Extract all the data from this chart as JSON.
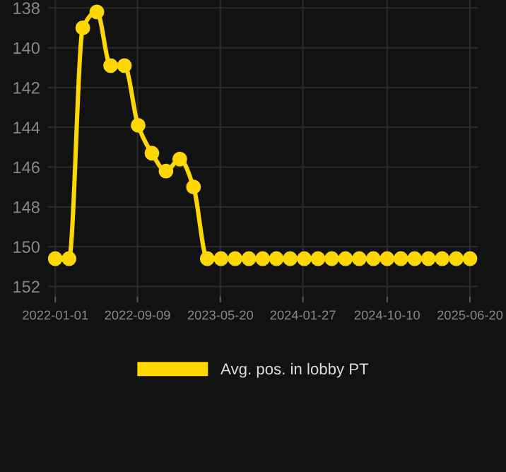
{
  "chart_data": {
    "type": "line",
    "x": [
      "2022-01-01",
      "2022-02-12",
      "2022-03-26",
      "2022-05-08",
      "2022-06-19",
      "2022-07-31",
      "2022-09-11",
      "2022-10-23",
      "2022-12-05",
      "2023-01-16",
      "2023-02-27",
      "2023-04-10",
      "2023-05-22",
      "2023-07-04",
      "2023-08-15",
      "2023-09-26",
      "2023-11-07",
      "2023-12-19",
      "2024-01-31",
      "2024-03-13",
      "2024-04-24",
      "2024-06-05",
      "2024-07-17",
      "2024-08-29",
      "2024-10-10",
      "2024-11-21",
      "2025-01-02",
      "2025-02-13",
      "2025-03-27",
      "2025-05-09",
      "2025-06-20"
    ],
    "series": [
      {
        "name": "Avg. pos. in lobby PT",
        "color": "#ffd700",
        "values": [
          150.6,
          150.6,
          139.0,
          138.2,
          140.9,
          140.9,
          143.9,
          145.3,
          146.2,
          145.6,
          147.0,
          150.6,
          150.6,
          150.6,
          150.6,
          150.6,
          150.6,
          150.6,
          150.6,
          150.6,
          150.6,
          150.6,
          150.6,
          150.6,
          150.6,
          150.6,
          150.6,
          150.6,
          150.6,
          150.6,
          150.6
        ]
      }
    ],
    "xlim": [
      "2021-12-10",
      "2025-07-15"
    ],
    "xticks": [
      "2022-01-01",
      "2022-09-09",
      "2023-05-20",
      "2024-01-27",
      "2024-10-10",
      "2025-06-20"
    ],
    "ylim": [
      152.5,
      137.6
    ],
    "yticks": [
      138,
      140,
      142,
      144,
      146,
      148,
      150,
      152
    ],
    "grid": true,
    "legend": "bottom",
    "marker": "circle",
    "line_style": "solid"
  }
}
